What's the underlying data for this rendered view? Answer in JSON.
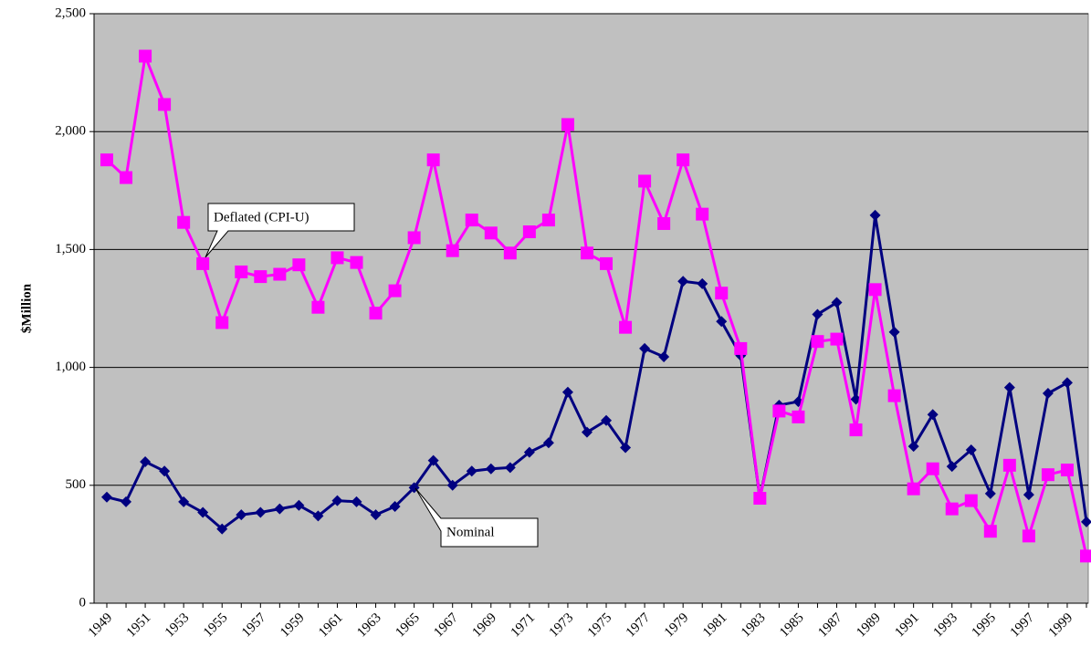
{
  "chart_data": {
    "type": "line",
    "y_label": "$Million",
    "categories": [
      "1949",
      null,
      "1951",
      null,
      "1953",
      null,
      "1955",
      null,
      "1957",
      null,
      "1959",
      null,
      "1961",
      null,
      "1963",
      null,
      "1965",
      null,
      "1967",
      null,
      "1969",
      null,
      "1971",
      null,
      "1973",
      null,
      "1975",
      null,
      "1977",
      null,
      "1979",
      null,
      "1981",
      null,
      "1983",
      null,
      "1985",
      null,
      "1987",
      null,
      "1989",
      null,
      "1991",
      null,
      "1993",
      null,
      "1995",
      null,
      "1997",
      null,
      "1999",
      null
    ],
    "series": [
      {
        "name": "Nominal",
        "color": "#000080",
        "marker": "diamond",
        "values": [
          450,
          430,
          600,
          560,
          430,
          385,
          315,
          375,
          385,
          400,
          415,
          370,
          435,
          430,
          375,
          410,
          490,
          605,
          500,
          560,
          570,
          575,
          640,
          680,
          895,
          725,
          775,
          660,
          1080,
          1045,
          1365,
          1355,
          1195,
          1050,
          445,
          840,
          855,
          1225,
          1275,
          865,
          1645,
          1150,
          665,
          800,
          580,
          650,
          465,
          915,
          460,
          890,
          935,
          345
        ]
      },
      {
        "name": "Deflated (CPI-U)",
        "color": "#ff00ff",
        "marker": "square",
        "values": [
          1880,
          1805,
          2320,
          2115,
          1615,
          1440,
          1190,
          1405,
          1385,
          1395,
          1435,
          1255,
          1465,
          1445,
          1230,
          1325,
          1550,
          1880,
          1495,
          1625,
          1570,
          1485,
          1575,
          1625,
          2030,
          1485,
          1440,
          1170,
          1790,
          1610,
          1880,
          1650,
          1315,
          1080,
          445,
          815,
          790,
          1110,
          1120,
          735,
          1330,
          880,
          485,
          570,
          400,
          435,
          305,
          585,
          285,
          545,
          565,
          200
        ]
      }
    ],
    "ylim": [
      0,
      2500
    ],
    "yticks": [
      0,
      500,
      {
        "value": 1000,
        "label": "1,000"
      },
      {
        "value": 1500,
        "label": "1,500"
      },
      {
        "value": 2000,
        "label": "2,000"
      },
      {
        "value": 2500,
        "label": "2,500"
      }
    ],
    "grid": true,
    "background": "#c0c0c0"
  }
}
